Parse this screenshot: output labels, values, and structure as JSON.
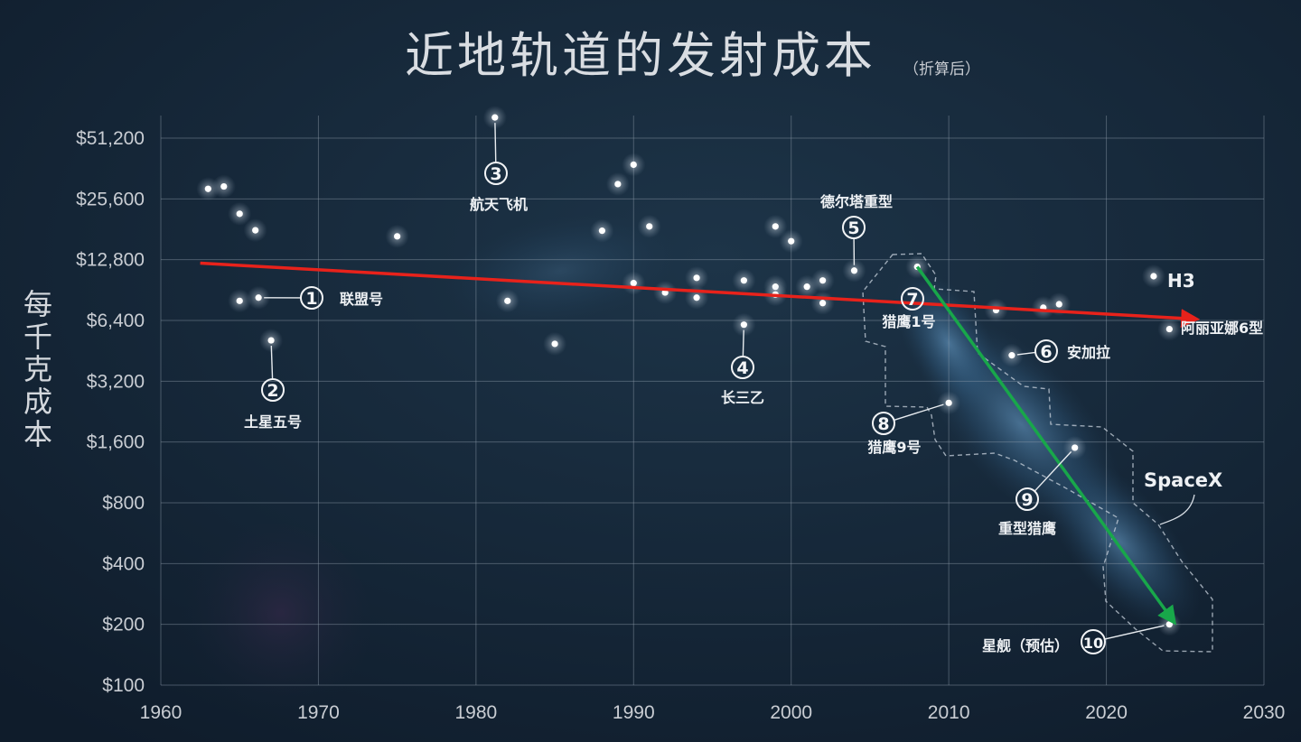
{
  "chart_data": {
    "type": "scatter",
    "title": "近地轨道的发射成本",
    "subtitle": "（折算后）",
    "xlabel": "",
    "ylabel": "每千克成本",
    "xlim": [
      1960,
      2030
    ],
    "ylim": [
      100,
      51200
    ],
    "yscale": "log2",
    "grid": true,
    "x_ticks": [
      "1960",
      "1970",
      "1980",
      "1990",
      "2000",
      "2010",
      "2020",
      "2030"
    ],
    "y_ticks": [
      {
        "value": 100,
        "label": "$100"
      },
      {
        "value": 200,
        "label": "$200"
      },
      {
        "value": 400,
        "label": "$400"
      },
      {
        "value": 800,
        "label": "$800"
      },
      {
        "value": 1600,
        "label": "$1,600"
      },
      {
        "value": 3200,
        "label": "$3,200"
      },
      {
        "value": 6400,
        "label": "$6,400"
      },
      {
        "value": 12800,
        "label": "$12,800"
      },
      {
        "value": 25600,
        "label": "$25,600"
      },
      {
        "value": 51200,
        "label": "$51,200"
      }
    ],
    "points": [
      {
        "x": 1963.0,
        "y": 28700
      },
      {
        "x": 1964.0,
        "y": 29500
      },
      {
        "x": 1965.0,
        "y": 21600
      },
      {
        "x": 1966.0,
        "y": 17900
      },
      {
        "x": 1965.0,
        "y": 8000
      },
      {
        "x": 1966.2,
        "y": 8300
      },
      {
        "x": 1967.0,
        "y": 5100
      },
      {
        "x": 1975.0,
        "y": 16700
      },
      {
        "x": 1981.2,
        "y": 64800
      },
      {
        "x": 1982.0,
        "y": 8000
      },
      {
        "x": 1985.0,
        "y": 4900
      },
      {
        "x": 1988.0,
        "y": 17800
      },
      {
        "x": 1989.0,
        "y": 30300
      },
      {
        "x": 1990.0,
        "y": 37800
      },
      {
        "x": 1991.0,
        "y": 18700
      },
      {
        "x": 1990.0,
        "y": 9800
      },
      {
        "x": 1992.0,
        "y": 8800
      },
      {
        "x": 1994.0,
        "y": 10400
      },
      {
        "x": 1994.0,
        "y": 8300
      },
      {
        "x": 1997.0,
        "y": 10100
      },
      {
        "x": 1997.0,
        "y": 6100
      },
      {
        "x": 1999.0,
        "y": 18700
      },
      {
        "x": 2000.0,
        "y": 15800
      },
      {
        "x": 1999.0,
        "y": 9400
      },
      {
        "x": 1999.0,
        "y": 8600
      },
      {
        "x": 2001.0,
        "y": 9400
      },
      {
        "x": 2002.0,
        "y": 10100
      },
      {
        "x": 2002.0,
        "y": 7800
      },
      {
        "x": 2004.0,
        "y": 11300
      },
      {
        "x": 2008.0,
        "y": 11800
      },
      {
        "x": 2010.0,
        "y": 2500
      },
      {
        "x": 2013.0,
        "y": 7200
      },
      {
        "x": 2014.0,
        "y": 4300
      },
      {
        "x": 2016.0,
        "y": 7400
      },
      {
        "x": 2017.0,
        "y": 7700
      },
      {
        "x": 2018.0,
        "y": 1500
      },
      {
        "x": 2023.0,
        "y": 10600
      },
      {
        "x": 2024.0,
        "y": 5800
      },
      {
        "x": 2024.0,
        "y": 200
      }
    ],
    "trend_lines": [
      {
        "color": "#e8221b",
        "from": [
          1962.5,
          12300
        ],
        "to": [
          2025.7,
          6500
        ]
      },
      {
        "color": "#18a74a",
        "from": [
          2008.0,
          11800
        ],
        "to": [
          2024.3,
          205
        ]
      }
    ],
    "annotations": [
      {
        "num": "1",
        "label": "联盟号",
        "x": 1966.2,
        "y": 8300
      },
      {
        "num": "2",
        "label": "土星五号",
        "x": 1967.0,
        "y": 5100
      },
      {
        "num": "3",
        "label": "航天飞机",
        "x": 1981.2,
        "y": 64800
      },
      {
        "num": "4",
        "label": "长三乙",
        "x": 1997.0,
        "y": 6100
      },
      {
        "num": "5",
        "label": "德尔塔重型",
        "x": 2004.0,
        "y": 11300
      },
      {
        "num": "6",
        "label": "安加拉",
        "x": 2014.0,
        "y": 4300
      },
      {
        "num": "7",
        "label": "猎鹰1号",
        "x": 2008.0,
        "y": 11800
      },
      {
        "num": "8",
        "label": "猎鹰9号",
        "x": 2010.0,
        "y": 2500
      },
      {
        "num": "9",
        "label": "重型猎鹰",
        "x": 2018.0,
        "y": 1500
      },
      {
        "num": "10",
        "label": "星舰（预估）",
        "x": 2024.0,
        "y": 200
      }
    ],
    "labels": {
      "h3": "H3",
      "ariane6": "阿丽亚娜6型",
      "spacex": "SpaceX"
    },
    "colors": {
      "background": "#142436",
      "grid": "#8c9aa8",
      "point": "#ffffff",
      "text": "#d9dde2"
    }
  }
}
